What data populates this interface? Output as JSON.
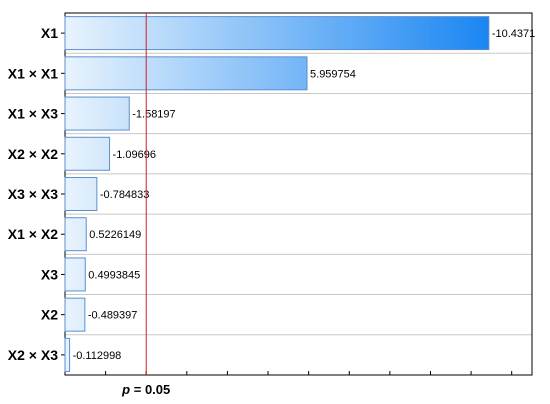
{
  "chart_data": {
    "type": "bar",
    "orientation": "horizontal",
    "categories": [
      "X1",
      "X1 × X1",
      "X1 × X3",
      "X2 × X2",
      "X3 × X3",
      "X1 × X2",
      "X3",
      "X2",
      "X2 × X3"
    ],
    "values": [
      10.4371,
      5.959754,
      1.58197,
      1.09696,
      0.784833,
      0.5226149,
      0.4993845,
      0.489397,
      0.112998
    ],
    "value_labels": [
      "-10.4371",
      "5.959754",
      "-1.58197",
      "-1.09696",
      "-0.784833",
      "0.5226149",
      "0.4993845",
      "-0.489397",
      "-0.112998"
    ],
    "xlim": [
      0,
      11.5
    ],
    "reference_line": {
      "value": 2.0,
      "label_italic": "p",
      "label_rest": " = 0.05",
      "color": "#cc2222"
    },
    "grid": "horizontal",
    "bar_gradient": [
      "#e8f3fd",
      "#1a86f2"
    ],
    "bar_border": "#5b8fd0"
  }
}
